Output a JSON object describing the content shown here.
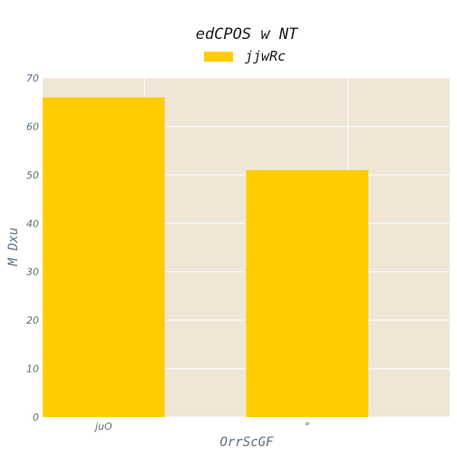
{
  "chart_data": {
    "type": "bar",
    "title": "edCPOS w NT",
    "xlabel": "OrrScGF",
    "ylabel": "M Dxu",
    "categories": [
      "juO",
      "w"
    ],
    "series": [
      {
        "name": "jjwRc",
        "values": [
          66,
          51
        ]
      }
    ],
    "ylim": [
      0,
      70
    ],
    "yticks": [
      0,
      10,
      20,
      30,
      40,
      50,
      60,
      70
    ],
    "grid": true,
    "legend_position": "top-center",
    "colors": {
      "bar": "#ffcc00",
      "plot_background": "#efe6d6",
      "grid": "#ffffff",
      "text": "#5a6f7f"
    }
  }
}
